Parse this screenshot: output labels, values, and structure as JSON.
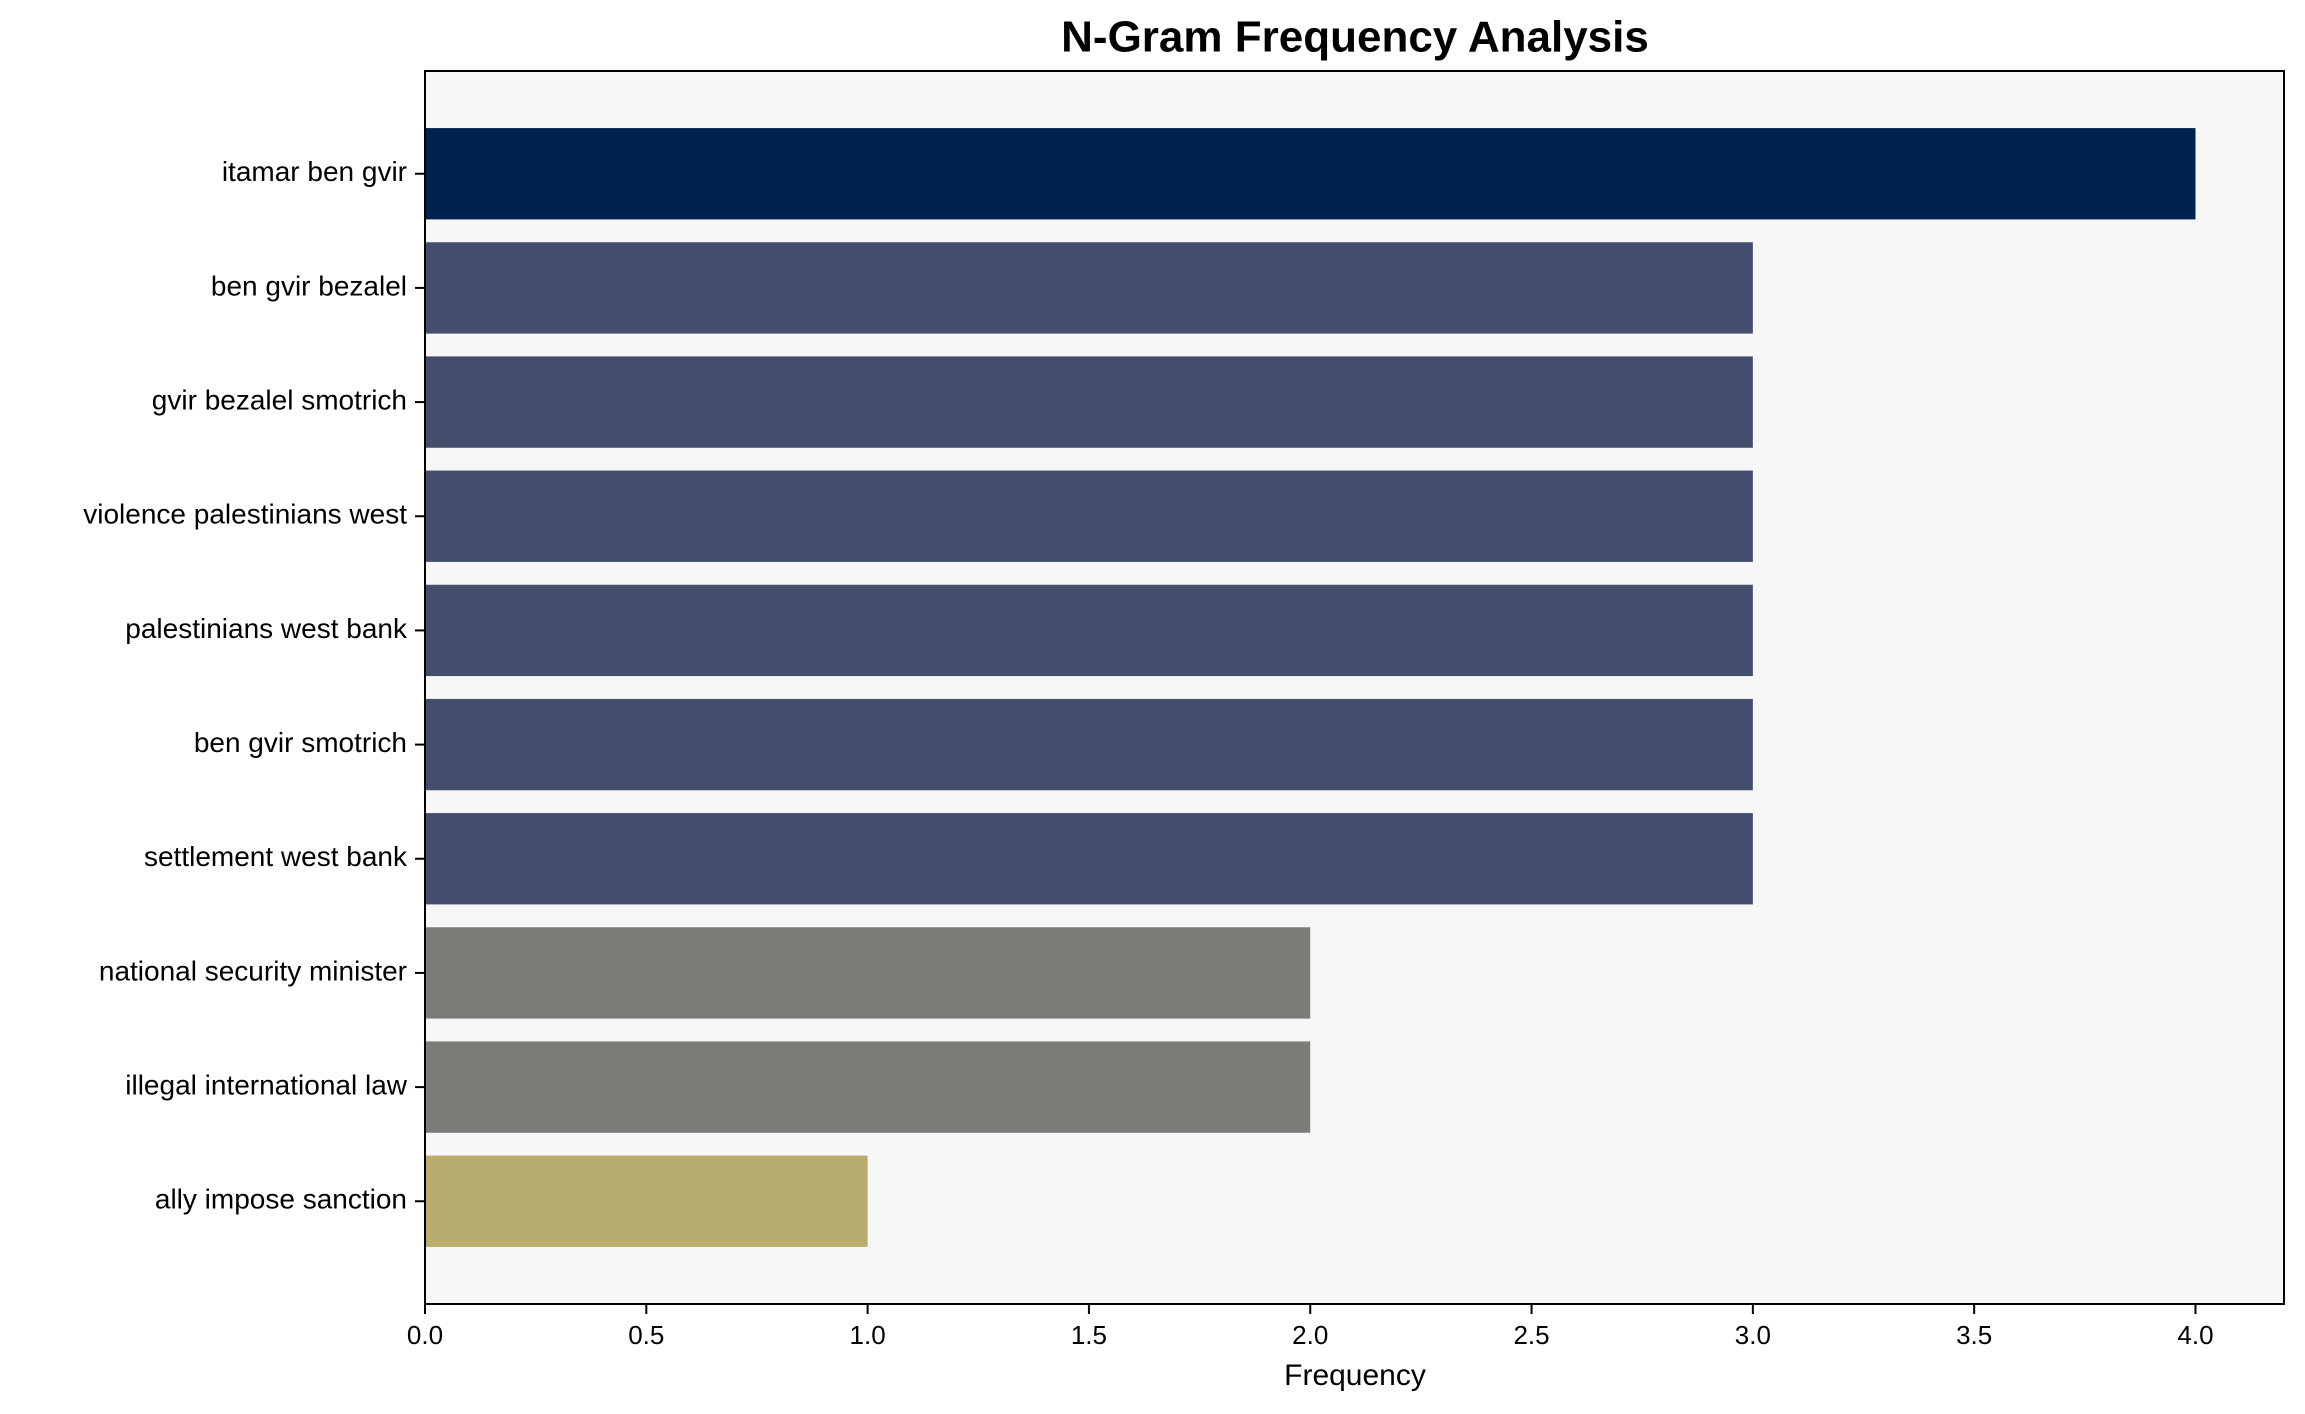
{
  "chart_data": {
    "type": "barh",
    "title": "N-Gram Frequency Analysis",
    "xlabel": "Frequency",
    "categories": [
      "itamar ben gvir",
      "ben gvir bezalel",
      "gvir bezalel smotrich",
      "violence palestinians west",
      "palestinians west bank",
      "ben gvir smotrich",
      "settlement west bank",
      "national security minister",
      "illegal international law",
      "ally impose sanction"
    ],
    "values": [
      4,
      3,
      3,
      3,
      3,
      3,
      3,
      2,
      2,
      1
    ],
    "colors": [
      "#00224e",
      "#434e6c",
      "#434e6c",
      "#434e6c",
      "#434e6c",
      "#434e6c",
      "#434e6c",
      "#7d7c78",
      "#7d7c78",
      "#b8ac6f"
    ],
    "xlim": [
      0,
      4.2
    ],
    "xticks": [
      {
        "value": 0,
        "label": "0.0"
      },
      0.5,
      {
        "value": 1,
        "label": "1.0"
      },
      1.5,
      {
        "value": 2,
        "label": "2.0"
      },
      2.5,
      {
        "value": 3,
        "label": "3.0"
      },
      3.5,
      {
        "value": 4,
        "label": "4.0"
      }
    ],
    "background": "#f7f7f7"
  }
}
